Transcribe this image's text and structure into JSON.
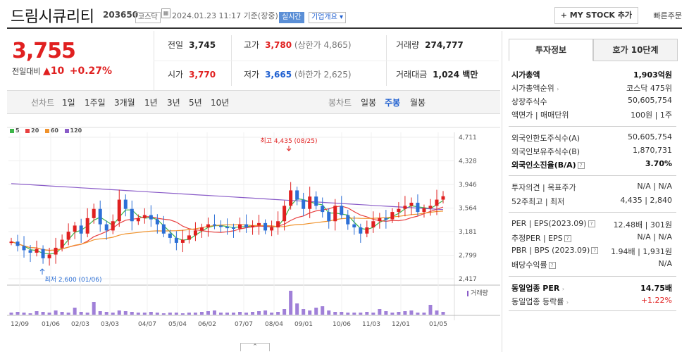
{
  "header": {
    "title": "드림시큐리티",
    "code": "203650",
    "market_badge": "코스닥",
    "date": "2024.01.23 11:17  기준(장중)",
    "realtime_badge": "실시간",
    "company_overview": "기업개요 ▾",
    "mystock_button": "+ MY STOCK 추가",
    "quick_order": "빠른주문"
  },
  "price": {
    "current": "3,755",
    "change_label": "전일대비",
    "change_arrow": "▲",
    "change_value": "10",
    "change_pct": "+0.27%"
  },
  "summary": {
    "prev_label": "전일",
    "prev_value": "3,745",
    "high_label": "고가",
    "high_value": "3,780",
    "upper_limit": "(상한가 4,865)",
    "volume_label": "거래량",
    "volume_value": "274,777",
    "open_label": "시가",
    "open_value": "3,770",
    "low_label": "저가",
    "low_value": "3,665",
    "lower_limit": "(하한가 2,625)",
    "amount_label": "거래대금",
    "amount_value": "1,024 백만"
  },
  "period_bar": {
    "line_label": "선차트",
    "periods": [
      "1일",
      "1주일",
      "3개월",
      "1년",
      "3년",
      "5년",
      "10년"
    ],
    "candle_label": "봉차트",
    "candles": [
      "일봉",
      "주봉",
      "월봉"
    ],
    "active_candle": "주봉"
  },
  "legend": [
    {
      "label": "5",
      "color": "#3db64a"
    },
    {
      "label": "20",
      "color": "#e84040"
    },
    {
      "label": "60",
      "color": "#f0922b"
    },
    {
      "label": "120",
      "color": "#8a5cc8"
    }
  ],
  "chart_data": {
    "type": "candlestick",
    "y_ticks": [
      "4,711",
      "4,328",
      "3,946",
      "3,564",
      "3,181",
      "2,799",
      "2,417"
    ],
    "x_ticks": [
      "12/09",
      "01/06",
      "02/03",
      "03/03",
      "04/07",
      "05/04",
      "06/02",
      "07/07",
      "08/04",
      "09/01",
      "10/06",
      "11/03",
      "12/01",
      "01/05"
    ],
    "high_annotation": "최고 4,435 (08/25)",
    "low_annotation": "최저 2,600 (01/06)",
    "volume_label": "거래량",
    "colors": {
      "up": "#e02020",
      "down": "#2c6fd6",
      "volume": "#a080d8"
    }
  },
  "info_panel": {
    "tabs": [
      "투자정보",
      "호가 10단계"
    ],
    "market_cap_label": "시가총액",
    "market_cap_value": "1,903억원",
    "market_rank_label": "시가총액순위",
    "market_rank_value": "코스닥 475위",
    "shares_label": "상장주식수",
    "shares_value": "50,605,754",
    "par_label": "액면가 | 매매단위",
    "par_value": "100원 | 1주",
    "foreign_limit_label": "외국인한도주식수(A)",
    "foreign_limit_value": "50,605,754",
    "foreign_hold_label": "외국인보유주식수(B)",
    "foreign_hold_value": "1,870,731",
    "foreign_ratio_label": "외국인소진율(B/A)",
    "foreign_ratio_value": "3.70%",
    "opinion_label": "투자의견 | 목표주가",
    "opinion_value": "N/A | N/A",
    "week52_label": "52주최고 | 최저",
    "week52_value": "4,435 | 2,840",
    "per_label": "PER | EPS(2023.09)",
    "per_value": "12.48배 | 301원",
    "est_per_label": "추정PER | EPS",
    "est_per_value": "N/A | N/A",
    "pbr_label": "PBR | BPS (2023.09)",
    "pbr_value": "1.94배 | 1,931원",
    "dividend_label": "배당수익률",
    "dividend_value": "N/A",
    "sector_per_label": "동일업종 PER",
    "sector_per_value": "14.75배",
    "sector_rate_label": "동일업종 등락률",
    "sector_rate_value": "+1.22%"
  }
}
